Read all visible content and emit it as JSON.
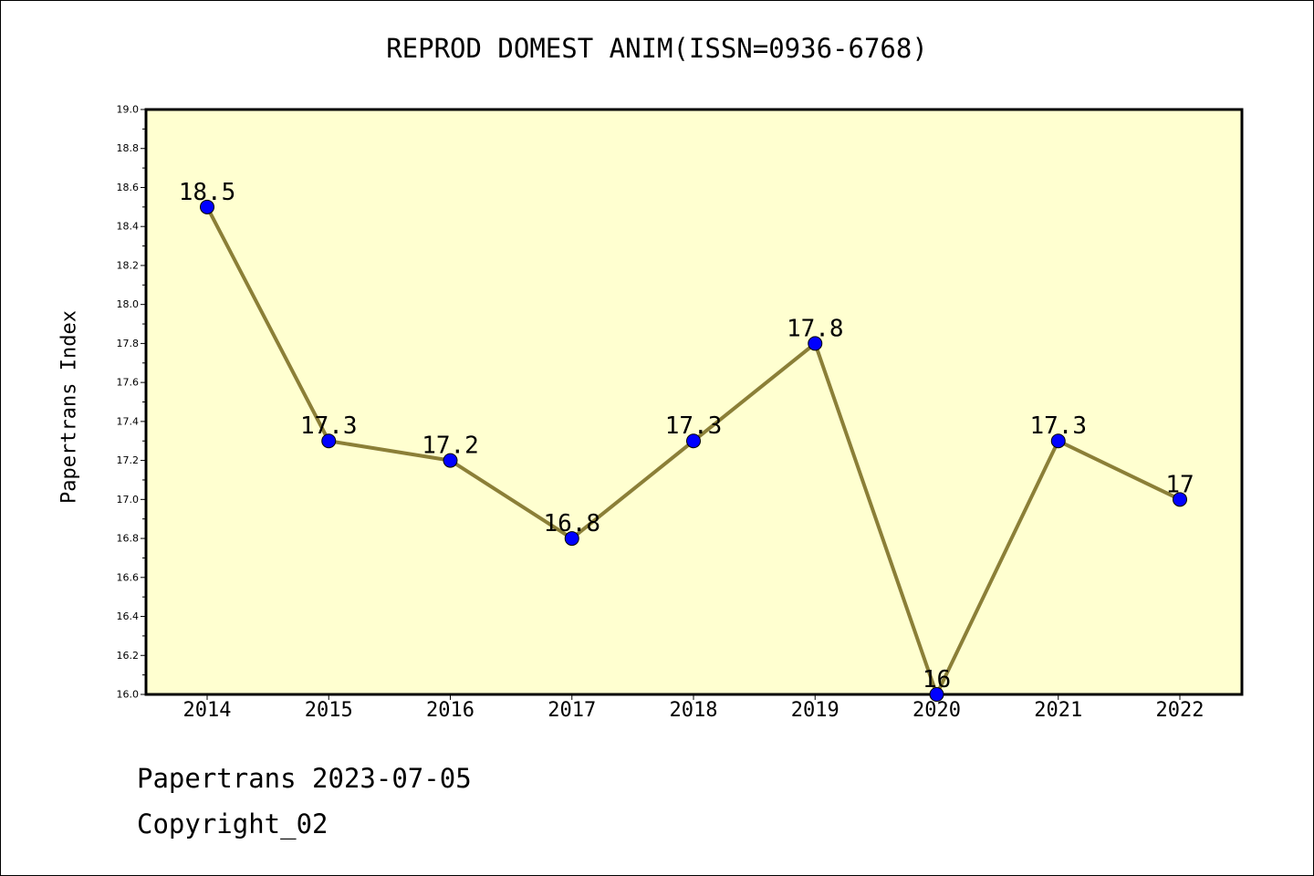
{
  "chart_data": {
    "type": "line",
    "title": "REPROD DOMEST ANIM(ISSN=0936-6768)",
    "ylabel": "Papertrans Index",
    "xlabel": "",
    "categories": [
      "2014",
      "2015",
      "2016",
      "2017",
      "2018",
      "2019",
      "2020",
      "2021",
      "2022"
    ],
    "series": [
      {
        "values": [
          18.5,
          17.3,
          17.2,
          16.8,
          17.3,
          17.8,
          16.0,
          17.3,
          17.0
        ],
        "labels": [
          "18.5",
          "17.3",
          "17.2",
          "16.8",
          "17.3",
          "17.8",
          "16",
          "17.3",
          "17"
        ]
      }
    ],
    "ylim": [
      16.0,
      19.0
    ],
    "yticks": [
      "16.0",
      "16.2",
      "16.4",
      "16.6",
      "16.8",
      "17.0",
      "17.2",
      "17.4",
      "17.6",
      "17.8",
      "18.0",
      "18.2",
      "18.4",
      "18.6",
      "18.8",
      "19.0"
    ],
    "grid": false,
    "legend": "none",
    "colors": {
      "plot_background": "#ffffd0",
      "line": "#8b7f37",
      "marker": "#0000ff"
    }
  },
  "footer": {
    "line1": "Papertrans 2023-07-05",
    "line2": "Copyright_02"
  }
}
